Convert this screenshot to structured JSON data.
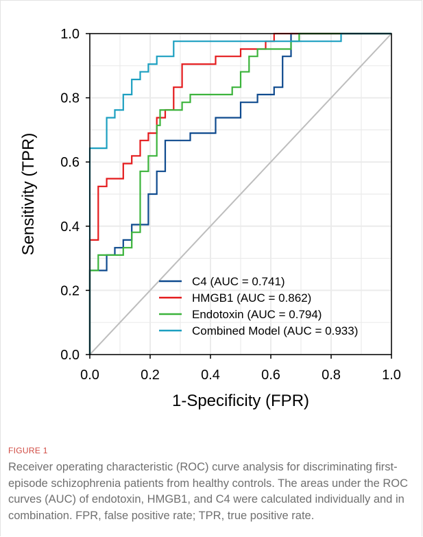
{
  "figure": {
    "label": "FIGURE 1",
    "caption": "Receiver operating characteristic (ROC) curve analysis for discriminating first-episode schizophrenia patients from healthy controls. The areas under the ROC curves (AUC) of endotoxin, HMGB1, and C4 were calculated individually and in combination. FPR, false positive rate; TPR, true positive rate."
  },
  "chart_data": {
    "type": "line",
    "title": "",
    "xlabel": "1-Specificity (FPR)",
    "ylabel": "Sensitivity (TPR)",
    "xlim": [
      0,
      1
    ],
    "ylim": [
      0,
      1
    ],
    "xticks": [
      "0.0",
      "0.2",
      "0.4",
      "0.6",
      "0.8",
      "1.0"
    ],
    "yticks": [
      "0.0",
      "0.2",
      "0.4",
      "0.6",
      "0.8",
      "1.0"
    ],
    "grid": true,
    "legend_position": "bottom-right",
    "diagonal_reference": {
      "color": "#bdbdbd",
      "points": [
        [
          0,
          0
        ],
        [
          1,
          1
        ]
      ]
    },
    "series": [
      {
        "name": "C4 (AUC = 0.741)",
        "color": "#0e4a8e",
        "points": [
          [
            0,
            0
          ],
          [
            0,
            0.262
          ],
          [
            0.056,
            0.262
          ],
          [
            0.056,
            0.31
          ],
          [
            0.083,
            0.31
          ],
          [
            0.083,
            0.333
          ],
          [
            0.111,
            0.333
          ],
          [
            0.111,
            0.357
          ],
          [
            0.139,
            0.357
          ],
          [
            0.139,
            0.405
          ],
          [
            0.194,
            0.405
          ],
          [
            0.194,
            0.5
          ],
          [
            0.222,
            0.5
          ],
          [
            0.222,
            0.571
          ],
          [
            0.25,
            0.571
          ],
          [
            0.25,
            0.667
          ],
          [
            0.333,
            0.667
          ],
          [
            0.333,
            0.69
          ],
          [
            0.417,
            0.69
          ],
          [
            0.417,
            0.738
          ],
          [
            0.5,
            0.738
          ],
          [
            0.5,
            0.786
          ],
          [
            0.556,
            0.786
          ],
          [
            0.556,
            0.81
          ],
          [
            0.611,
            0.81
          ],
          [
            0.611,
            0.833
          ],
          [
            0.639,
            0.833
          ],
          [
            0.639,
            0.929
          ],
          [
            0.667,
            0.929
          ],
          [
            0.667,
            1.0
          ],
          [
            1.0,
            1.0
          ]
        ]
      },
      {
        "name": "HMGB1 (AUC = 0.862)",
        "color": "#e41a1c",
        "points": [
          [
            0,
            0
          ],
          [
            0,
            0.357
          ],
          [
            0.028,
            0.357
          ],
          [
            0.028,
            0.524
          ],
          [
            0.056,
            0.524
          ],
          [
            0.056,
            0.548
          ],
          [
            0.111,
            0.548
          ],
          [
            0.111,
            0.595
          ],
          [
            0.139,
            0.595
          ],
          [
            0.139,
            0.619
          ],
          [
            0.167,
            0.619
          ],
          [
            0.167,
            0.667
          ],
          [
            0.194,
            0.667
          ],
          [
            0.194,
            0.69
          ],
          [
            0.222,
            0.69
          ],
          [
            0.222,
            0.738
          ],
          [
            0.25,
            0.738
          ],
          [
            0.25,
            0.762
          ],
          [
            0.278,
            0.762
          ],
          [
            0.278,
            0.833
          ],
          [
            0.306,
            0.833
          ],
          [
            0.306,
            0.905
          ],
          [
            0.417,
            0.905
          ],
          [
            0.417,
            0.929
          ],
          [
            0.5,
            0.929
          ],
          [
            0.5,
            0.952
          ],
          [
            0.583,
            0.952
          ],
          [
            0.583,
            0.976
          ],
          [
            0.611,
            0.976
          ],
          [
            0.611,
            1.0
          ],
          [
            1.0,
            1.0
          ]
        ]
      },
      {
        "name": "Endotoxin (AUC = 0.794)",
        "color": "#3bb33b",
        "points": [
          [
            0,
            0
          ],
          [
            0,
            0.262
          ],
          [
            0.028,
            0.262
          ],
          [
            0.028,
            0.31
          ],
          [
            0.111,
            0.31
          ],
          [
            0.111,
            0.333
          ],
          [
            0.139,
            0.333
          ],
          [
            0.139,
            0.381
          ],
          [
            0.167,
            0.381
          ],
          [
            0.167,
            0.571
          ],
          [
            0.194,
            0.571
          ],
          [
            0.194,
            0.619
          ],
          [
            0.222,
            0.619
          ],
          [
            0.222,
            0.714
          ],
          [
            0.233,
            0.714
          ],
          [
            0.233,
            0.762
          ],
          [
            0.306,
            0.762
          ],
          [
            0.306,
            0.786
          ],
          [
            0.333,
            0.786
          ],
          [
            0.333,
            0.81
          ],
          [
            0.472,
            0.81
          ],
          [
            0.472,
            0.833
          ],
          [
            0.5,
            0.833
          ],
          [
            0.5,
            0.881
          ],
          [
            0.528,
            0.881
          ],
          [
            0.528,
            0.929
          ],
          [
            0.556,
            0.929
          ],
          [
            0.556,
            0.952
          ],
          [
            0.667,
            0.952
          ],
          [
            0.667,
            0.976
          ],
          [
            0.694,
            0.976
          ],
          [
            0.694,
            1.0
          ],
          [
            1.0,
            1.0
          ]
        ]
      },
      {
        "name": "Combined Model (AUC = 0.933)",
        "color": "#1b9fc0",
        "points": [
          [
            0,
            0
          ],
          [
            0,
            0.643
          ],
          [
            0.056,
            0.643
          ],
          [
            0.056,
            0.738
          ],
          [
            0.083,
            0.738
          ],
          [
            0.083,
            0.762
          ],
          [
            0.111,
            0.762
          ],
          [
            0.111,
            0.81
          ],
          [
            0.139,
            0.81
          ],
          [
            0.139,
            0.857
          ],
          [
            0.167,
            0.857
          ],
          [
            0.167,
            0.881
          ],
          [
            0.194,
            0.881
          ],
          [
            0.194,
            0.905
          ],
          [
            0.222,
            0.905
          ],
          [
            0.222,
            0.929
          ],
          [
            0.278,
            0.929
          ],
          [
            0.278,
            0.976
          ],
          [
            0.833,
            0.976
          ],
          [
            0.833,
            1.0
          ],
          [
            1.0,
            1.0
          ]
        ]
      }
    ]
  }
}
